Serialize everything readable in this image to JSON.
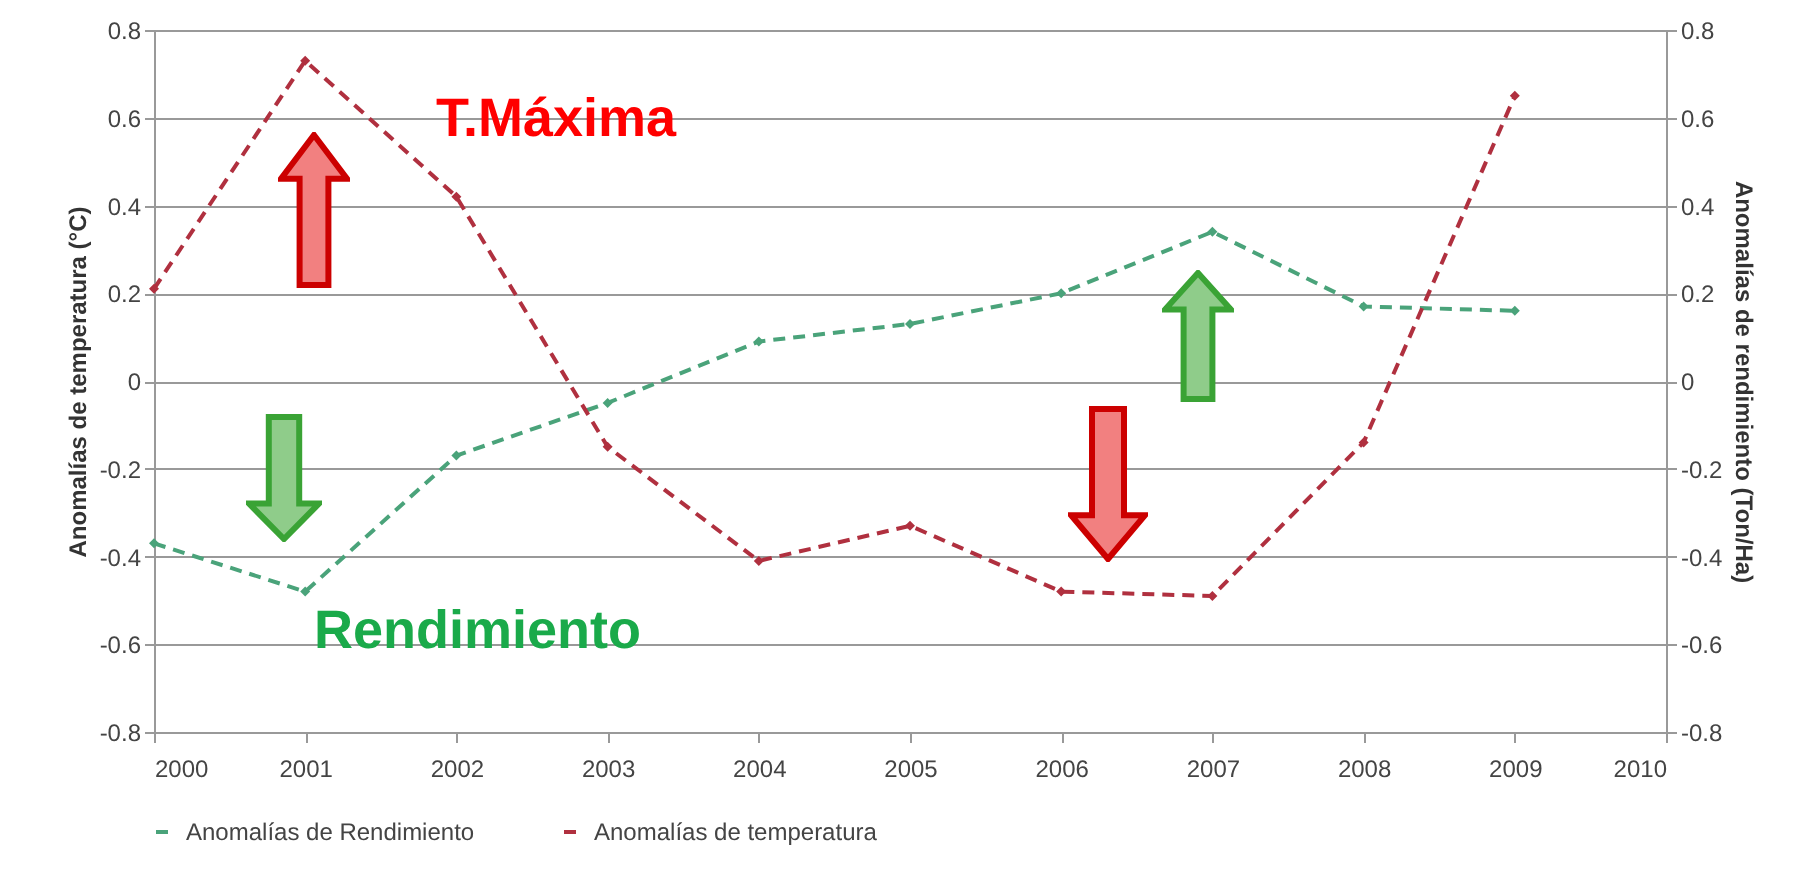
{
  "chart_data": {
    "type": "line",
    "xlabel": null,
    "ylabel": "Anomalías de temperatura (°C)",
    "y2label": "Anomalías de rendimiento (Ton/Ha)",
    "x": [
      2000,
      2001,
      2002,
      2003,
      2004,
      2005,
      2006,
      2007,
      2008,
      2009
    ],
    "series": [
      {
        "name": "Anomalías de Rendimiento",
        "color": "#4aa37a",
        "axis": "y2",
        "values": [
          -0.37,
          -0.48,
          -0.17,
          -0.05,
          0.09,
          0.13,
          0.2,
          0.34,
          0.17,
          0.16
        ]
      },
      {
        "name": "Anomalías de temperatura",
        "color": "#b0303f",
        "values": [
          0.21,
          0.73,
          0.42,
          -0.15,
          -0.41,
          -0.33,
          -0.48,
          -0.49,
          -0.14,
          0.65
        ]
      }
    ],
    "xlim": [
      2000,
      2010
    ],
    "xticks": [
      2000,
      2001,
      2002,
      2003,
      2004,
      2005,
      2006,
      2007,
      2008,
      2009,
      2010
    ],
    "ylim": [
      -0.8,
      0.8
    ],
    "yticks": [
      -0.8,
      -0.6,
      -0.4,
      -0.2,
      0,
      0.2,
      0.4,
      0.6,
      0.8
    ],
    "y2lim": [
      -0.8,
      0.8
    ],
    "y2ticks": [
      -0.8,
      -0.6,
      -0.4,
      -0.2,
      0,
      0.2,
      0.4,
      0.6,
      0.8
    ],
    "annotations": [
      "T.Máxima",
      "Rendimiento"
    ],
    "grid": "y",
    "legend": "bottom",
    "marker": "diamond",
    "line_style": "dashed"
  }
}
